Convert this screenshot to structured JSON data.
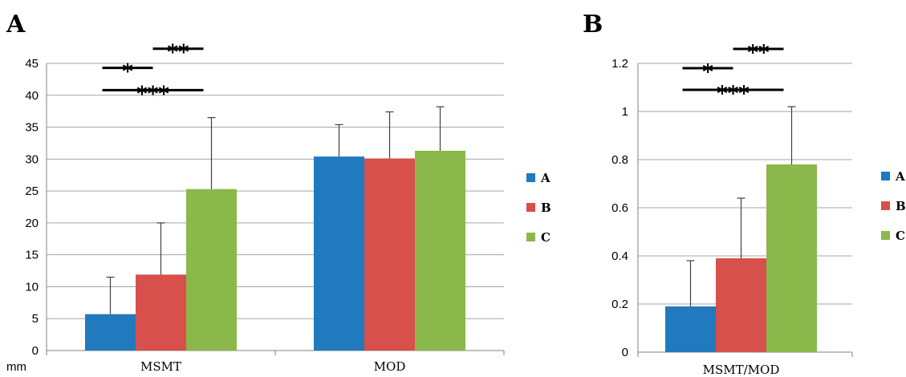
{
  "chart_data": [
    {
      "type": "bar",
      "panel": "A",
      "ylabel": "mm",
      "ylim": [
        0,
        45
      ],
      "yticks": [
        0,
        5,
        10,
        15,
        20,
        25,
        30,
        35,
        40,
        45
      ],
      "categories": [
        "MSMT",
        "MOD"
      ],
      "series": [
        {
          "name": "A",
          "color": "#2179be",
          "values": [
            5.7,
            30.4
          ],
          "errors": [
            5.8,
            5.0
          ]
        },
        {
          "name": "B",
          "color": "#d7504b",
          "values": [
            11.9,
            30.1
          ],
          "errors": [
            8.1,
            7.3
          ]
        },
        {
          "name": "C",
          "color": "#8ab84b",
          "values": [
            25.3,
            31.3
          ],
          "errors": [
            11.2,
            6.9
          ]
        }
      ],
      "grid": true,
      "legend": "right",
      "significance": [
        {
          "pair": [
            "A",
            "B"
          ],
          "label": "*",
          "y": 44.3
        },
        {
          "pair": [
            "B",
            "C"
          ],
          "label": "**",
          "y": 47.3
        },
        {
          "pair": [
            "A",
            "C"
          ],
          "label": "***",
          "y": 40.8
        }
      ]
    },
    {
      "type": "bar",
      "panel": "B",
      "ylabel": "",
      "ylim": [
        0,
        1.2
      ],
      "yticks": [
        "0",
        "0.2",
        "0.4",
        "0.6",
        "0.8",
        "1",
        "1.2"
      ],
      "categories": [
        "MSMT/MOD"
      ],
      "series": [
        {
          "name": "A",
          "color": "#2179be",
          "values": [
            0.19
          ],
          "errors": [
            0.19
          ]
        },
        {
          "name": "B",
          "color": "#d7504b",
          "values": [
            0.39
          ],
          "errors": [
            0.25
          ]
        },
        {
          "name": "C",
          "color": "#8ab84b",
          "values": [
            0.78
          ],
          "errors": [
            0.24
          ]
        }
      ],
      "grid": true,
      "legend": "right",
      "significance": [
        {
          "pair": [
            "A",
            "B"
          ],
          "label": "*",
          "y": 1.18
        },
        {
          "pair": [
            "B",
            "C"
          ],
          "label": "**",
          "y": 1.26
        },
        {
          "pair": [
            "A",
            "C"
          ],
          "label": "***",
          "y": 1.09
        }
      ]
    }
  ]
}
